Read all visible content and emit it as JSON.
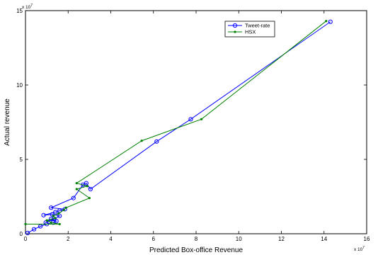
{
  "chart_data": {
    "type": "line",
    "title": "",
    "xlabel": "Predicted Box-office Revenue",
    "ylabel": "Actual revenue",
    "x_exponent_label": "x 10",
    "x_exponent_power": "7",
    "y_exponent_label": "x 10",
    "y_exponent_power": "7",
    "xlim": [
      0,
      16
    ],
    "ylim": [
      0,
      15
    ],
    "xticks": [
      0,
      2,
      4,
      6,
      8,
      10,
      12,
      14,
      16
    ],
    "yticks": [
      0,
      5,
      10,
      15
    ],
    "xtick_labels": [
      "0",
      "2",
      "4",
      "6",
      "8",
      "10",
      "12",
      "14",
      "16"
    ],
    "ytick_labels": [
      "0",
      "5",
      "10",
      "15"
    ],
    "grid": false,
    "legend_position": "top-right",
    "series": [
      {
        "name": "Tweet-rate",
        "color": "#0000ff",
        "marker": "circle",
        "points": [
          [
            0.1,
            0.05
          ],
          [
            0.4,
            0.3
          ],
          [
            0.7,
            0.5
          ],
          [
            1.0,
            0.65
          ],
          [
            1.3,
            0.75
          ],
          [
            1.45,
            0.85
          ],
          [
            1.2,
            1.0
          ],
          [
            0.95,
            0.75
          ],
          [
            1.35,
            1.0
          ],
          [
            1.6,
            1.2
          ],
          [
            1.25,
            1.3
          ],
          [
            0.85,
            1.25
          ],
          [
            1.4,
            1.45
          ],
          [
            1.6,
            1.55
          ],
          [
            1.85,
            1.65
          ],
          [
            1.2,
            1.75
          ],
          [
            2.25,
            2.4
          ],
          [
            2.7,
            3.3
          ],
          [
            2.85,
            3.4
          ],
          [
            3.05,
            3.0
          ],
          [
            6.15,
            6.2
          ],
          [
            7.75,
            7.7
          ],
          [
            14.3,
            14.25
          ]
        ]
      },
      {
        "name": "HSX",
        "color": "#008000",
        "marker": "dot",
        "points": [
          [
            0.0,
            0.65
          ],
          [
            1.6,
            0.65
          ],
          [
            1.2,
            0.75
          ],
          [
            1.0,
            0.9
          ],
          [
            1.4,
            1.05
          ],
          [
            1.3,
            1.2
          ],
          [
            1.55,
            1.35
          ],
          [
            1.8,
            1.6
          ],
          [
            1.9,
            1.75
          ],
          [
            3.0,
            2.4
          ],
          [
            2.4,
            3.0
          ],
          [
            2.9,
            3.2
          ],
          [
            2.4,
            3.4
          ],
          [
            5.45,
            6.25
          ],
          [
            8.25,
            7.7
          ],
          [
            14.1,
            14.3
          ]
        ]
      }
    ]
  }
}
